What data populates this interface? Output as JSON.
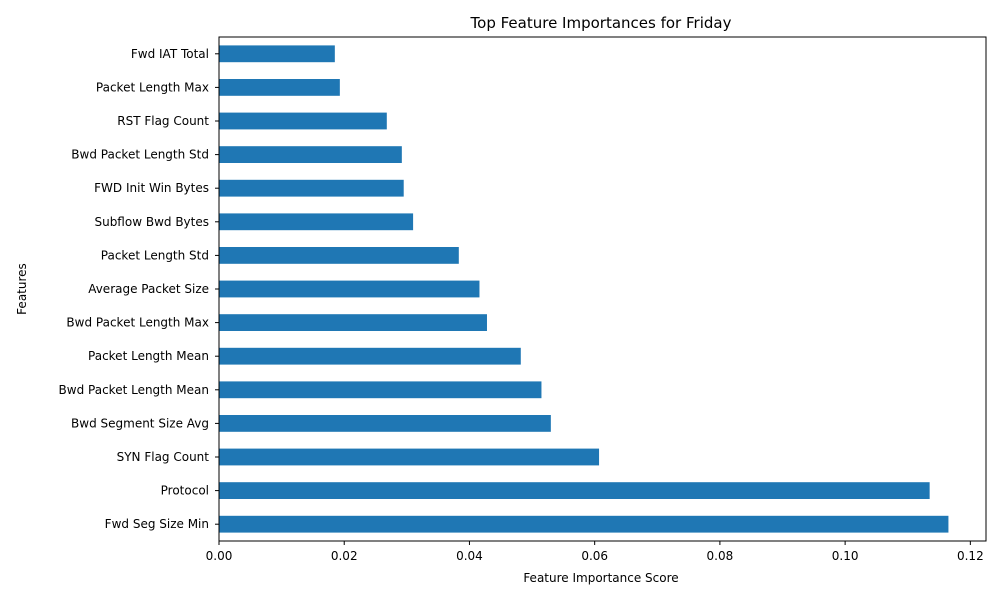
{
  "chart_data": {
    "type": "bar",
    "orientation": "horizontal",
    "title": "Top Feature Importances for Friday",
    "xlabel": "Feature Importance Score",
    "ylabel": "Features",
    "xlim": [
      0,
      0.1225
    ],
    "xticks": [
      0.0,
      0.02,
      0.04,
      0.06,
      0.08,
      0.1,
      0.12
    ],
    "xtick_labels": [
      "0.00",
      "0.02",
      "0.04",
      "0.06",
      "0.08",
      "0.10",
      "0.12"
    ],
    "grid": false,
    "bar_color": "#1f77b4",
    "categories": [
      "Fwd Seg Size Min",
      "Protocol",
      "SYN Flag Count",
      "Bwd Segment Size Avg",
      "Bwd Packet Length Mean",
      "Packet Length Mean",
      "Bwd Packet Length Max",
      "Average Packet Size",
      "Packet Length Std",
      "Subflow Bwd Bytes",
      "FWD Init Win Bytes",
      "Bwd Packet Length Std",
      "RST Flag Count",
      "Packet Length Max",
      "Fwd IAT Total"
    ],
    "values": [
      0.1165,
      0.1135,
      0.0607,
      0.053,
      0.0515,
      0.0482,
      0.0428,
      0.0416,
      0.0383,
      0.031,
      0.0295,
      0.0292,
      0.0268,
      0.0193,
      0.0185
    ]
  }
}
